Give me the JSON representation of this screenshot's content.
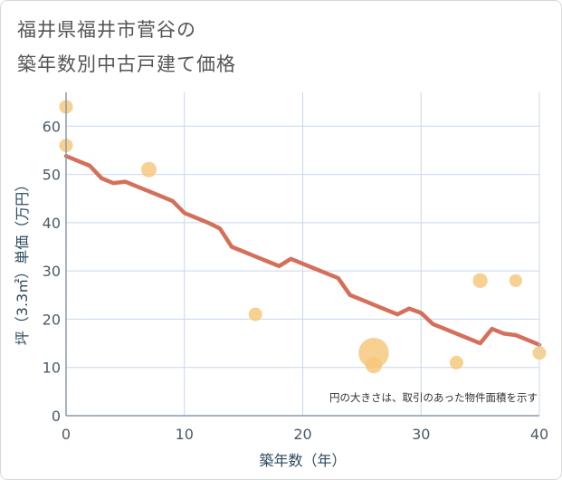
{
  "page": {
    "title_line1": "福井県福井市菅谷の",
    "title_line2": "築年数別中古戸建て価格"
  },
  "chart_data": {
    "type": "scatter",
    "title": "福井県福井市菅谷の築年数別中古戸建て価格",
    "xlabel": "築年数（年）",
    "ylabel": "坪（3.3㎡）単価（万円）",
    "xlim": [
      0,
      40
    ],
    "ylim": [
      0,
      67
    ],
    "xticks": [
      0,
      10,
      20,
      30,
      40
    ],
    "yticks": [
      0,
      10,
      20,
      30,
      40,
      50,
      60
    ],
    "grid": true,
    "note": "円の大きさは、取引のあった物件面積を示す",
    "colors": {
      "point": "#f5c77a",
      "trend": "#d4705a",
      "grid": "#c8d8e8"
    },
    "scatter": [
      {
        "x": 0,
        "y": 64,
        "size": 1
      },
      {
        "x": 0,
        "y": 56,
        "size": 1
      },
      {
        "x": 7,
        "y": 51,
        "size": 1.3
      },
      {
        "x": 16,
        "y": 21,
        "size": 1
      },
      {
        "x": 26,
        "y": 13,
        "size": 5
      },
      {
        "x": 26,
        "y": 10.5,
        "size": 1.5
      },
      {
        "x": 33,
        "y": 11,
        "size": 1
      },
      {
        "x": 35,
        "y": 28,
        "size": 1.2
      },
      {
        "x": 38,
        "y": 28,
        "size": 0.9
      },
      {
        "x": 40,
        "y": 13,
        "size": 1
      }
    ],
    "trend": {
      "x": [
        0,
        1,
        2,
        3,
        4,
        5,
        6,
        7,
        8,
        9,
        10,
        11,
        12,
        13,
        14,
        15,
        16,
        17,
        18,
        19,
        20,
        21,
        22,
        23,
        24,
        25,
        26,
        27,
        28,
        29,
        30,
        31,
        32,
        33,
        34,
        35,
        36,
        37,
        38,
        39,
        40
      ],
      "y": [
        53.8,
        52.8,
        51.8,
        49.2,
        48.2,
        48.5,
        47.5,
        46.5,
        45.5,
        44.5,
        42,
        41,
        40,
        38.8,
        35,
        34,
        33,
        32,
        31,
        32.5,
        31.5,
        30.5,
        29.5,
        28.5,
        25,
        24,
        23,
        22,
        21,
        22.2,
        21.3,
        19,
        18,
        17,
        16,
        15,
        18,
        17,
        16.7,
        15.7,
        14.7
      ]
    }
  }
}
